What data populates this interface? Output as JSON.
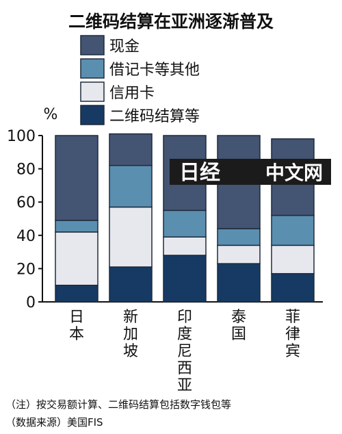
{
  "chart_data": {
    "type": "bar",
    "stacked": true,
    "title": "二维码结算在亚洲逐渐普及",
    "unit_label": "%",
    "categories": [
      "日本",
      "新加坡",
      "印度尼西亚",
      "泰国",
      "菲律宾"
    ],
    "series": [
      {
        "name": "二维码结算等",
        "values": [
          10,
          21,
          28,
          23,
          17
        ],
        "color": "#163a63"
      },
      {
        "name": "信用卡",
        "values": [
          32,
          36,
          11,
          11,
          17
        ],
        "color": "#e7e8ee"
      },
      {
        "name": "借记卡等其他",
        "values": [
          7,
          25,
          16,
          10,
          18
        ],
        "color": "#5b8fb0"
      },
      {
        "name": "现金",
        "values": [
          51,
          19,
          45,
          56,
          46
        ],
        "color": "#445473"
      }
    ],
    "legend_order": [
      "现金",
      "借记卡等其他",
      "信用卡",
      "二维码结算等"
    ],
    "y_ticks": [
      0,
      20,
      40,
      60,
      80,
      100
    ],
    "ylim": [
      0,
      100
    ],
    "legend_position": "top",
    "grid": false
  },
  "notes": {
    "note": "（注）按交易额计算、二维码结算包括数字钱包等",
    "source": "（数据来源）美国FIS"
  },
  "watermark": {
    "logo_text": "日经",
    "text": "中文网"
  }
}
